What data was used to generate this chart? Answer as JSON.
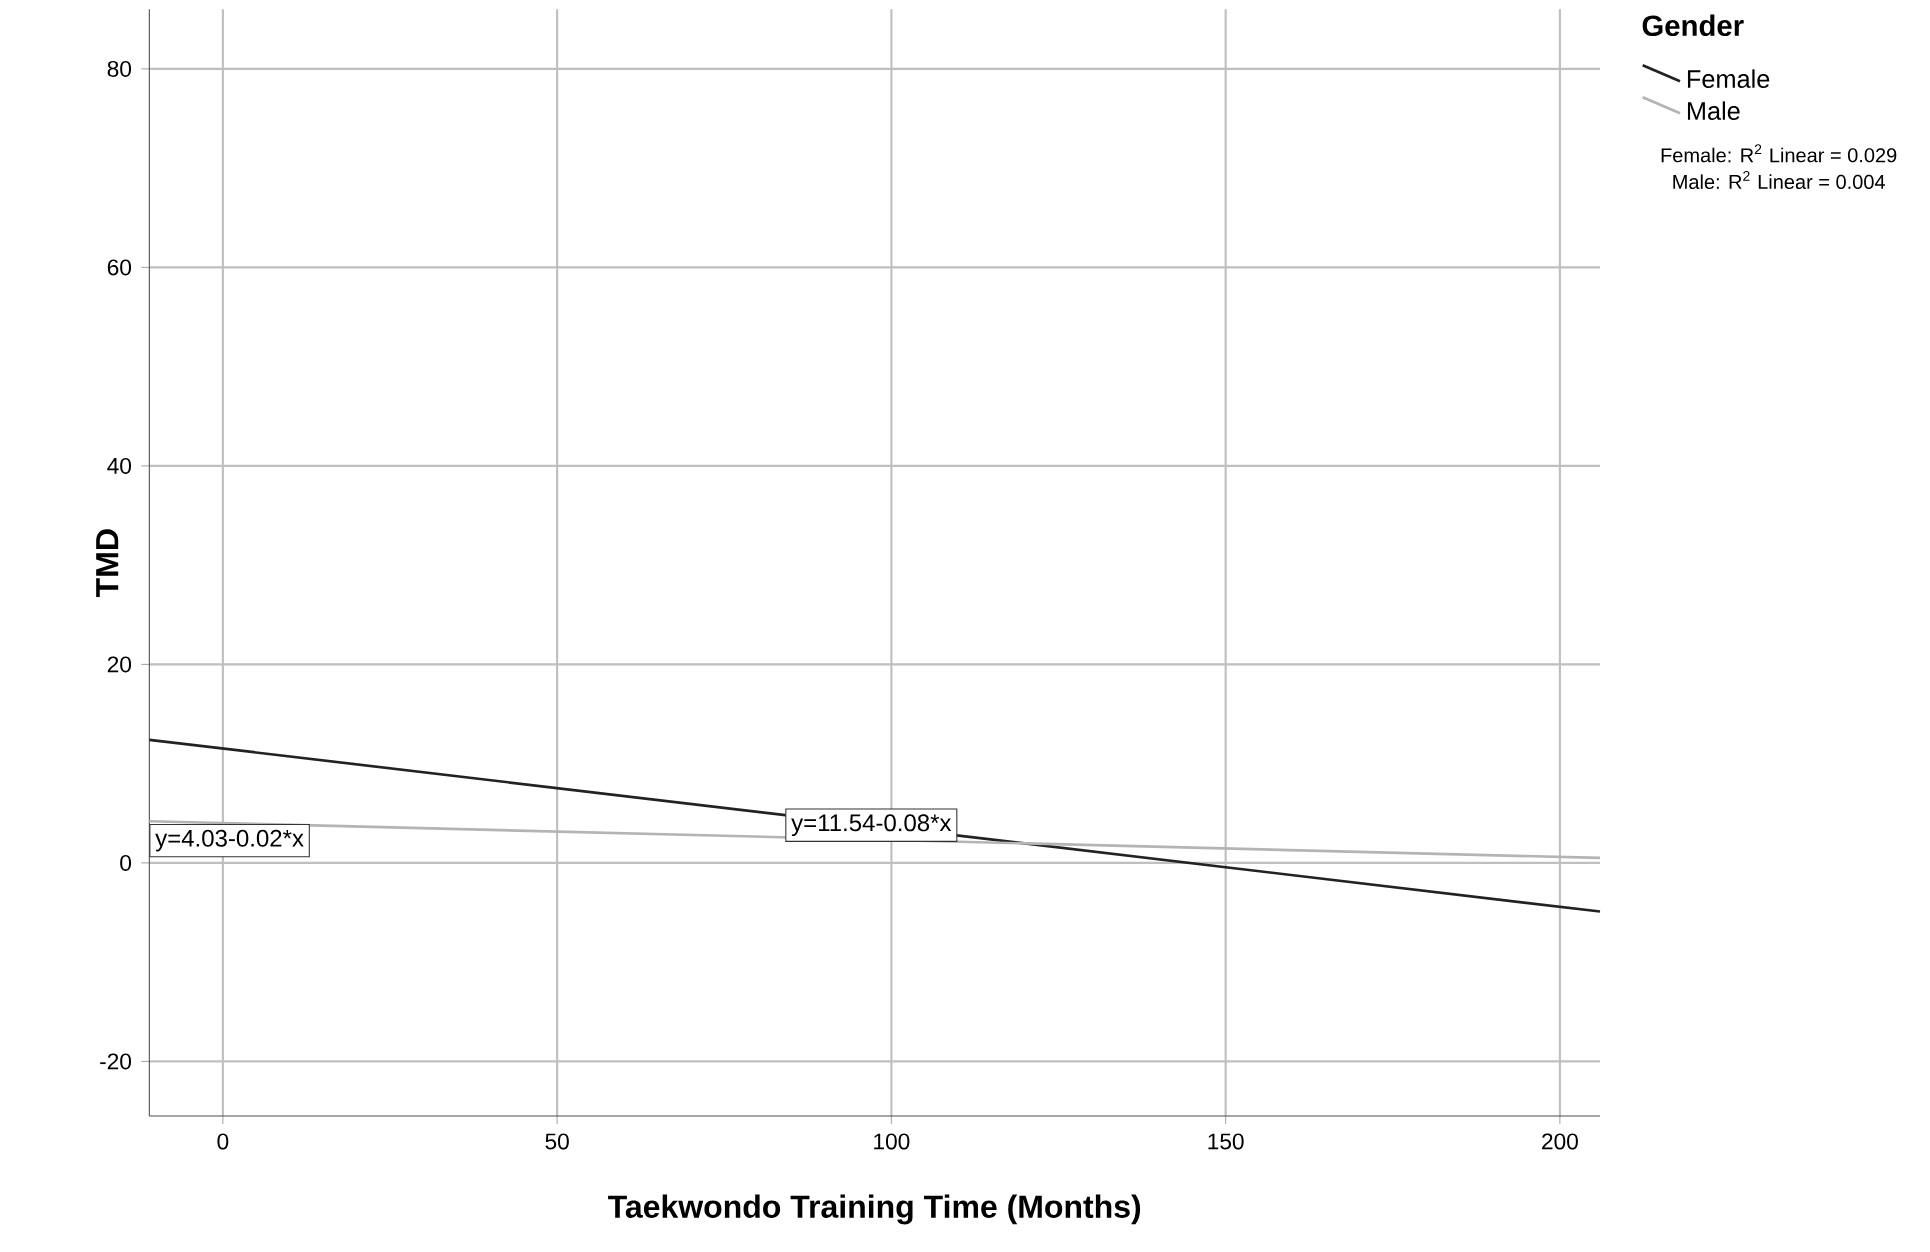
{
  "chart_data": {
    "type": "line",
    "xlabel": "Taekwondo Training Time (Months)",
    "ylabel": "TMD",
    "legend_title": "Gender",
    "x": [
      -11,
      206
    ],
    "series": [
      {
        "name": "Female",
        "color": "#222222",
        "values": [
          12.4,
          -4.9
        ]
      },
      {
        "name": "Male",
        "color": "#b4b4b4",
        "values": [
          4.2,
          0.5
        ]
      }
    ],
    "xlim": [
      -11,
      206
    ],
    "ylim": [
      -25.5,
      86
    ],
    "xticks": [
      0,
      50,
      100,
      150,
      200
    ],
    "yticks": [
      -20,
      0,
      20,
      40,
      60,
      80
    ],
    "grid": true,
    "legend": "right",
    "marker": "none",
    "line_style": "solid",
    "annotations": [
      {
        "text": "y=11.54-0.08*x",
        "x": 97,
        "y": 3.8
      },
      {
        "text": "y=4.03-0.02*x",
        "x": -11,
        "y": 4.2
      },
      "Female: R$^{2}$ Linear = 0.029",
      "Male: R$^{2}$ Linear = 0.004"
    ]
  }
}
